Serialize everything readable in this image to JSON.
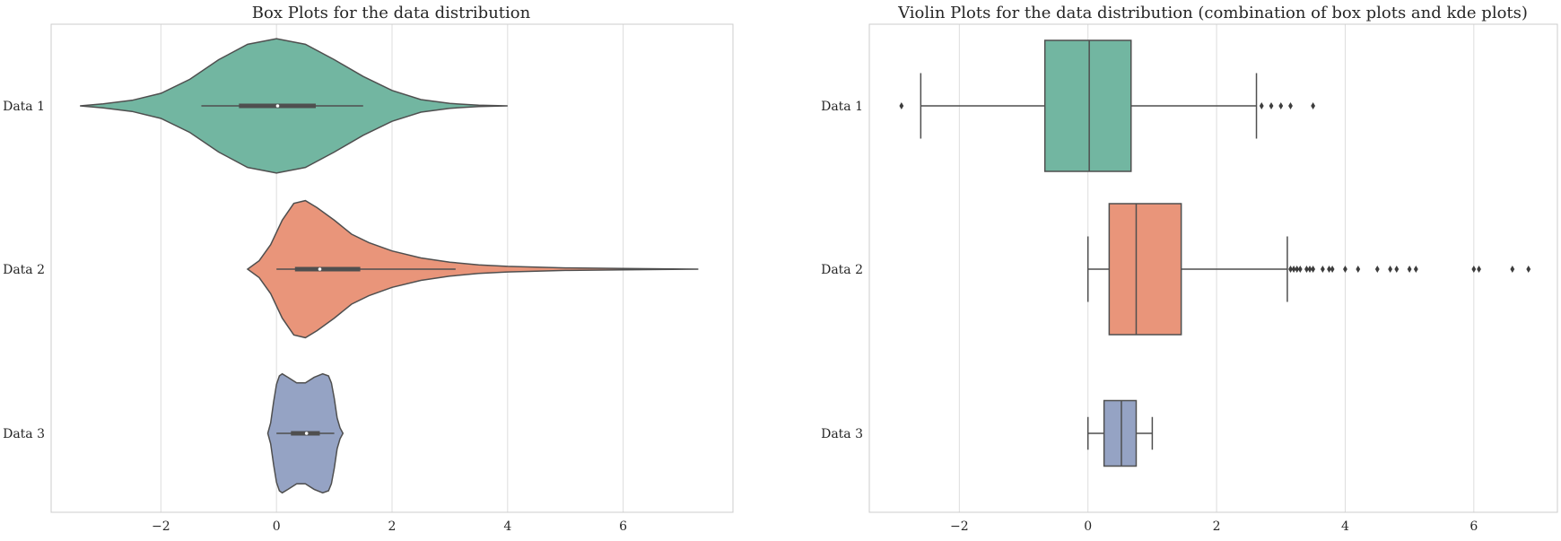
{
  "chart_data": [
    {
      "type": "violin",
      "title": "Box Plots for the data distribution",
      "orientation": "horizontal",
      "xlim": [
        -3.9,
        7.9
      ],
      "xticks": [
        -2,
        0,
        2,
        4,
        6
      ],
      "xtick_labels": [
        "−2",
        "0",
        "2",
        "4",
        "6"
      ],
      "categories": [
        "Data 1",
        "Data 2",
        "Data 3"
      ],
      "grid": true,
      "series": [
        {
          "color": "#72b6a1",
          "min": -3.4,
          "q1": -0.65,
          "median": 0.02,
          "q3": 0.68,
          "max": 4.0,
          "whisker_low": -1.3,
          "whisker_high": 1.5,
          "density": [
            [
              -3.4,
              0.0
            ],
            [
              -3.0,
              0.03
            ],
            [
              -2.5,
              0.08
            ],
            [
              -2.0,
              0.18
            ],
            [
              -1.5,
              0.38
            ],
            [
              -1.0,
              0.66
            ],
            [
              -0.5,
              0.88
            ],
            [
              0.0,
              0.96
            ],
            [
              0.5,
              0.88
            ],
            [
              1.0,
              0.66
            ],
            [
              1.5,
              0.42
            ],
            [
              2.0,
              0.22
            ],
            [
              2.5,
              0.09
            ],
            [
              3.0,
              0.035
            ],
            [
              3.5,
              0.01
            ],
            [
              4.0,
              0.0
            ]
          ]
        },
        {
          "color": "#e9957a",
          "min": -0.5,
          "q1": 0.32,
          "median": 0.75,
          "q3": 1.45,
          "max": 7.3,
          "whisker_low": 0.0,
          "whisker_high": 3.1,
          "density": [
            [
              -0.5,
              0.0
            ],
            [
              -0.3,
              0.12
            ],
            [
              -0.1,
              0.35
            ],
            [
              0.1,
              0.7
            ],
            [
              0.3,
              0.94
            ],
            [
              0.5,
              0.98
            ],
            [
              0.7,
              0.88
            ],
            [
              1.0,
              0.7
            ],
            [
              1.3,
              0.5
            ],
            [
              1.6,
              0.38
            ],
            [
              2.0,
              0.26
            ],
            [
              2.5,
              0.16
            ],
            [
              3.0,
              0.1
            ],
            [
              3.5,
              0.06
            ],
            [
              4.0,
              0.04
            ],
            [
              5.0,
              0.018
            ],
            [
              6.0,
              0.01
            ],
            [
              7.3,
              0.0
            ]
          ]
        },
        {
          "color": "#95a3c4",
          "min": -0.15,
          "q1": 0.25,
          "median": 0.52,
          "q3": 0.75,
          "max": 1.15,
          "whisker_low": 0.0,
          "whisker_high": 1.0,
          "density": [
            [
              -0.15,
              0.0
            ],
            [
              -0.1,
              0.15
            ],
            [
              -0.05,
              0.45
            ],
            [
              0.0,
              0.7
            ],
            [
              0.05,
              0.82
            ],
            [
              0.1,
              0.85
            ],
            [
              0.2,
              0.8
            ],
            [
              0.35,
              0.72
            ],
            [
              0.5,
              0.72
            ],
            [
              0.65,
              0.8
            ],
            [
              0.8,
              0.85
            ],
            [
              0.9,
              0.82
            ],
            [
              0.95,
              0.72
            ],
            [
              1.0,
              0.5
            ],
            [
              1.05,
              0.22
            ],
            [
              1.1,
              0.08
            ],
            [
              1.15,
              0.0
            ]
          ]
        }
      ]
    },
    {
      "type": "box",
      "title": "Violin Plots for the data distribution (combination of box plots and kde plots)",
      "orientation": "horizontal",
      "xlim": [
        -3.4,
        7.3
      ],
      "xticks": [
        -2,
        0,
        2,
        4,
        6
      ],
      "xtick_labels": [
        "−2",
        "0",
        "2",
        "4",
        "6"
      ],
      "categories": [
        "Data 1",
        "Data 2",
        "Data 3"
      ],
      "grid": true,
      "series": [
        {
          "color": "#72b6a1",
          "q1": -0.67,
          "median": 0.02,
          "q3": 0.67,
          "whisker_low": -2.6,
          "whisker_high": 2.62,
          "outliers": [
            -2.9,
            2.7,
            2.85,
            3.0,
            3.15,
            3.5
          ]
        },
        {
          "color": "#e9957a",
          "q1": 0.33,
          "median": 0.75,
          "q3": 1.45,
          "whisker_low": 0.0,
          "whisker_high": 3.1,
          "outliers": [
            3.15,
            3.2,
            3.25,
            3.3,
            3.4,
            3.45,
            3.5,
            3.65,
            3.75,
            3.8,
            4.0,
            4.2,
            4.5,
            4.7,
            4.8,
            5.0,
            5.1,
            6.0,
            6.08,
            6.6,
            6.85
          ]
        },
        {
          "color": "#95a3c4",
          "q1": 0.25,
          "median": 0.52,
          "q3": 0.75,
          "whisker_low": 0.0,
          "whisker_high": 1.0,
          "outliers": []
        }
      ]
    }
  ]
}
